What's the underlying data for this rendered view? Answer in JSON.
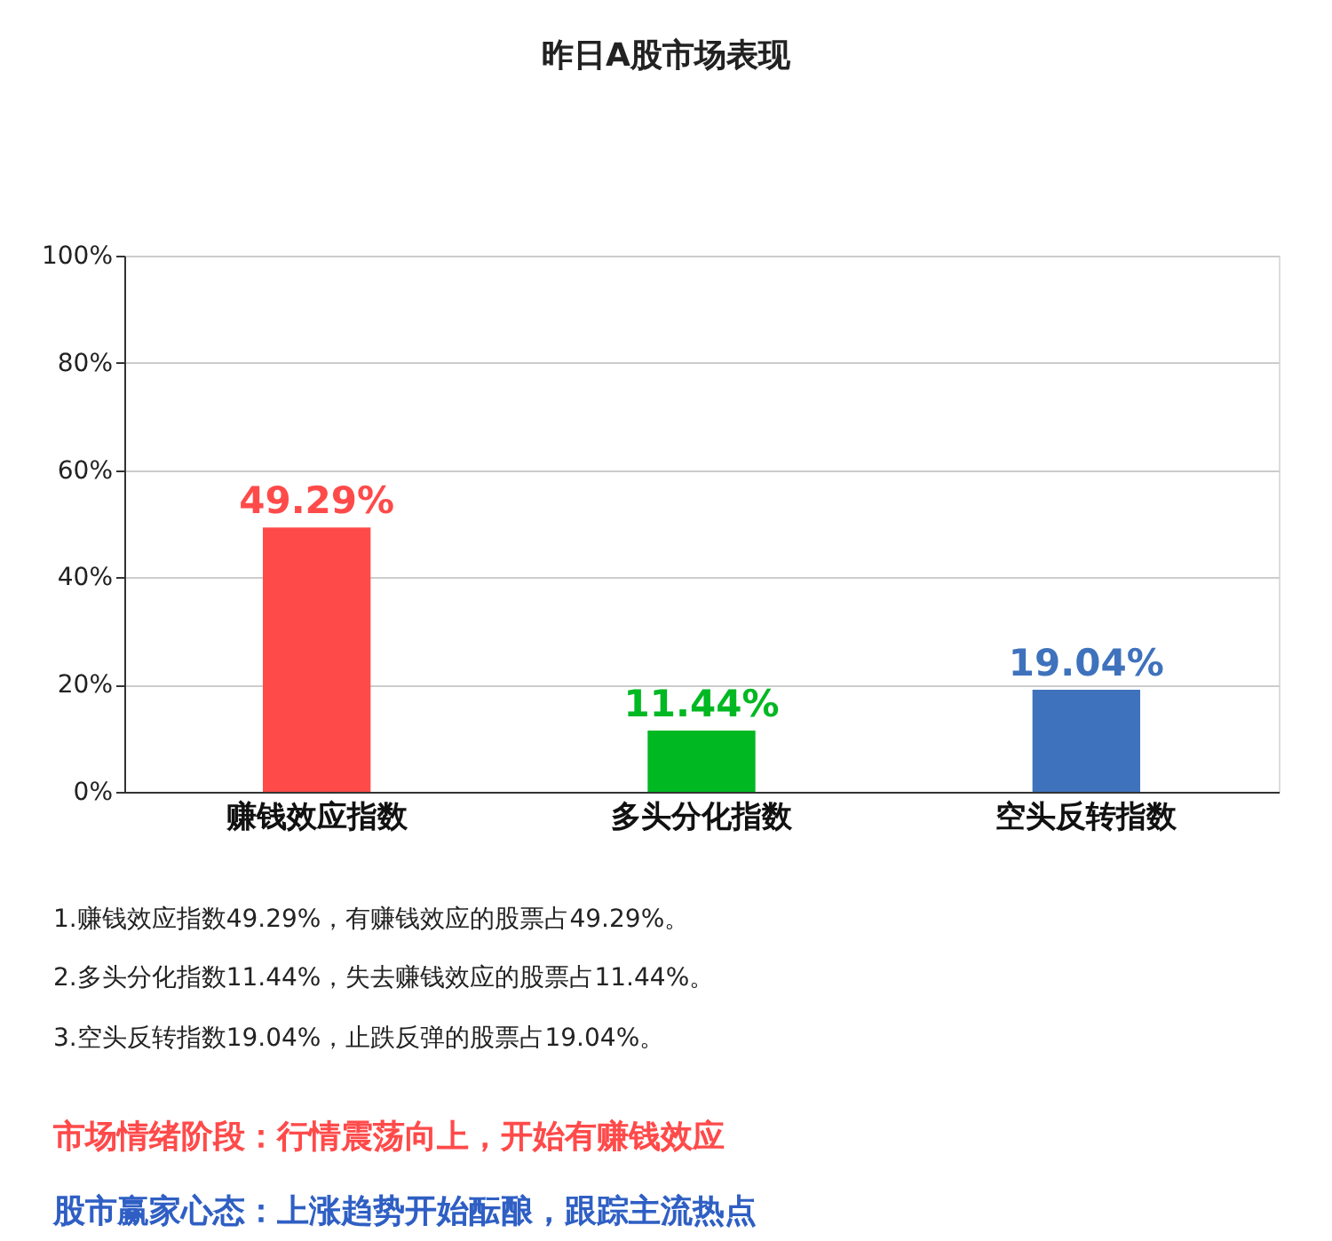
{
  "chart_data": {
    "type": "bar",
    "title": "昨日A股市场表现",
    "categories": [
      "赚钱效应指数",
      "多头分化指数",
      "空头反转指数"
    ],
    "values": [
      49.29,
      11.44,
      19.04
    ],
    "colors": [
      "#ff4a4a",
      "#00b822",
      "#3f72bc"
    ],
    "value_labels": [
      "49.29%",
      "11.44%",
      "19.04%"
    ],
    "ylim": [
      0,
      100
    ],
    "yticks": [
      {
        "value": 0,
        "label": "0%"
      },
      {
        "value": 20,
        "label": "20%"
      },
      {
        "value": 40,
        "label": "40%"
      },
      {
        "value": 60,
        "label": "60%"
      },
      {
        "value": 80,
        "label": "80%"
      },
      {
        "value": 100,
        "label": "100%"
      }
    ],
    "grid": "y",
    "annotations": [
      "1.赚钱效应指数49.29%，有赚钱效应的股票占49.29%。",
      "2.多头分化指数11.44%，失去赚钱效应的股票占11.44%。",
      "3.空头反转指数19.04%，止跌反弹的股票占19.04%。",
      "市场情绪阶段：行情震荡向上，开始有赚钱效应",
      "股市赢家心态：上涨趋势开始酝酿，跟踪主流热点"
    ]
  }
}
